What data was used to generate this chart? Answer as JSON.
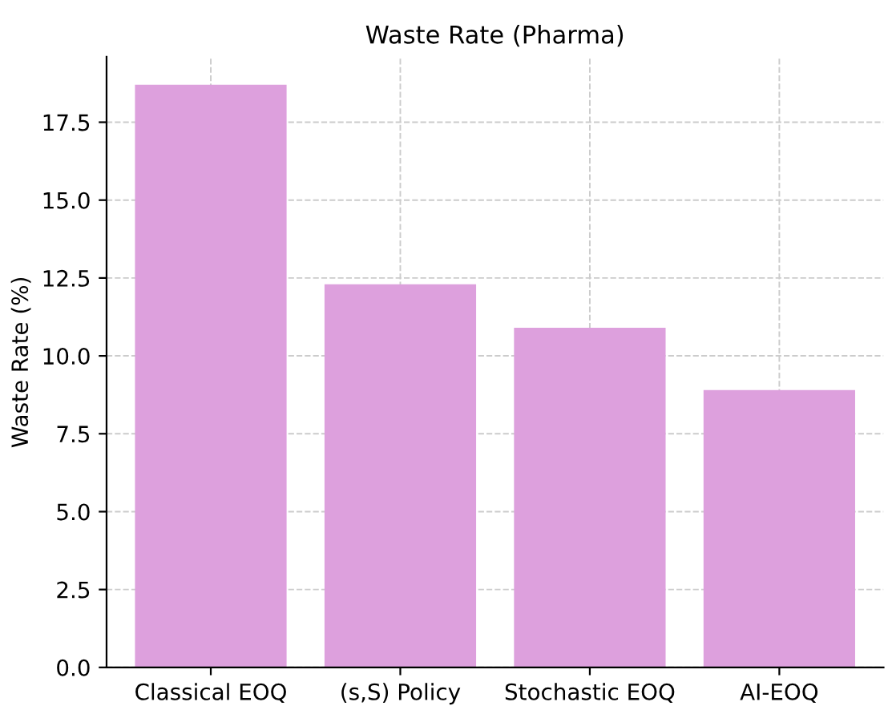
{
  "chart_data": {
    "type": "bar",
    "title": "Waste Rate (Pharma)",
    "ylabel": "Waste Rate (%)",
    "categories": [
      "Classical EOQ",
      "(s,S) Policy",
      "Stochastic EOQ",
      "AI-EOQ"
    ],
    "values": [
      18.7,
      12.3,
      10.9,
      8.9
    ],
    "color": "#dda0dd",
    "ylim": [
      0,
      19.6
    ],
    "yticks": [
      {
        "value": 0,
        "label": "0.0"
      },
      {
        "value": 2.5,
        "label": "2.5"
      },
      {
        "value": 5,
        "label": "5.0"
      },
      {
        "value": 7.5,
        "label": "7.5"
      },
      {
        "value": 10,
        "label": "10.0"
      },
      {
        "value": 12.5,
        "label": "12.5"
      },
      {
        "value": 15,
        "label": "15.0"
      },
      {
        "value": 17.5,
        "label": "17.5"
      }
    ],
    "grid": true
  }
}
